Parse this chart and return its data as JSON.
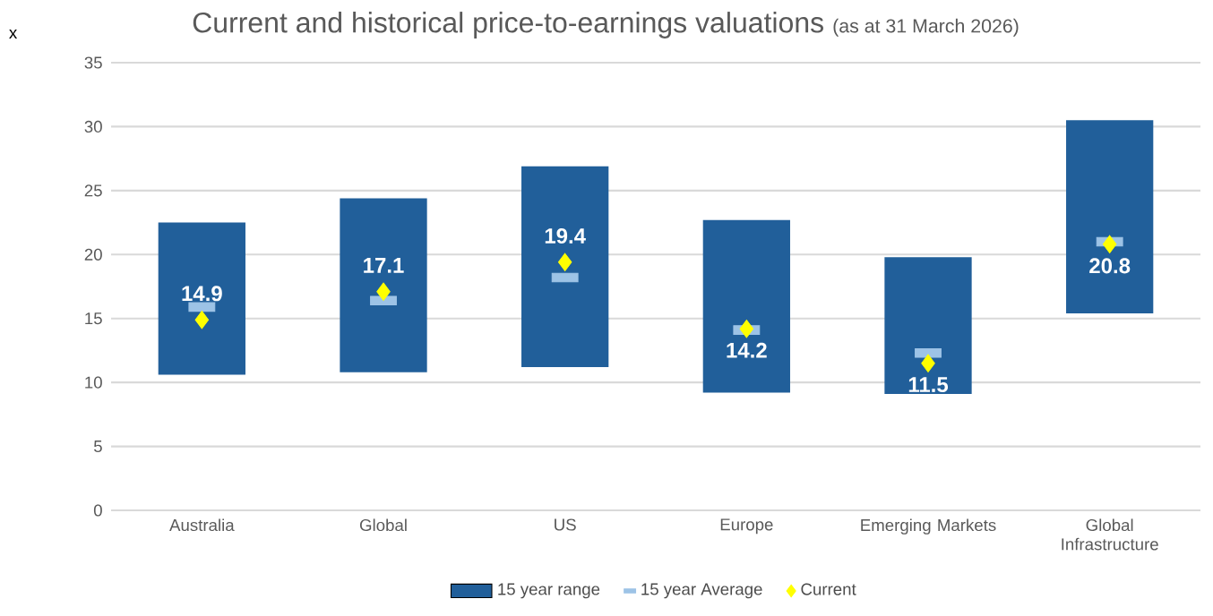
{
  "chart_data": {
    "type": "bar",
    "title": "Current and historical price-to-earnings valuations",
    "subtitle": "(as at 31 March 2026)",
    "ylabel": "x",
    "categories": [
      "Australia",
      "Global",
      "US",
      "Europe",
      "Emerging Markets",
      "Global Infrastructure"
    ],
    "series": [
      {
        "name": "15 year range",
        "type": "bar",
        "color": "#215f9a",
        "base": [
          10.6,
          10.8,
          11.2,
          9.2,
          9.1,
          15.4
        ],
        "values": [
          11.9,
          13.6,
          15.7,
          13.5,
          10.7,
          15.1
        ]
      },
      {
        "name": "15 year Average",
        "type": "scatter",
        "marker": "square",
        "color": "#9dc3e6",
        "values": [
          15.9,
          16.4,
          18.2,
          14.1,
          12.3,
          21.0
        ]
      },
      {
        "name": "Current",
        "type": "scatter",
        "marker": "diamond",
        "color": "#ffff00",
        "values": [
          14.9,
          17.1,
          19.4,
          14.2,
          11.5,
          20.8
        ],
        "value_labels": [
          "14.9",
          "17.1",
          "19.4",
          "14.2",
          "11.5",
          "20.8"
        ]
      }
    ],
    "ylim": [
      0,
      35
    ],
    "yticks": [
      0,
      5,
      10,
      15,
      20,
      25,
      30,
      35
    ],
    "grid": "y",
    "legend": "bottom"
  }
}
